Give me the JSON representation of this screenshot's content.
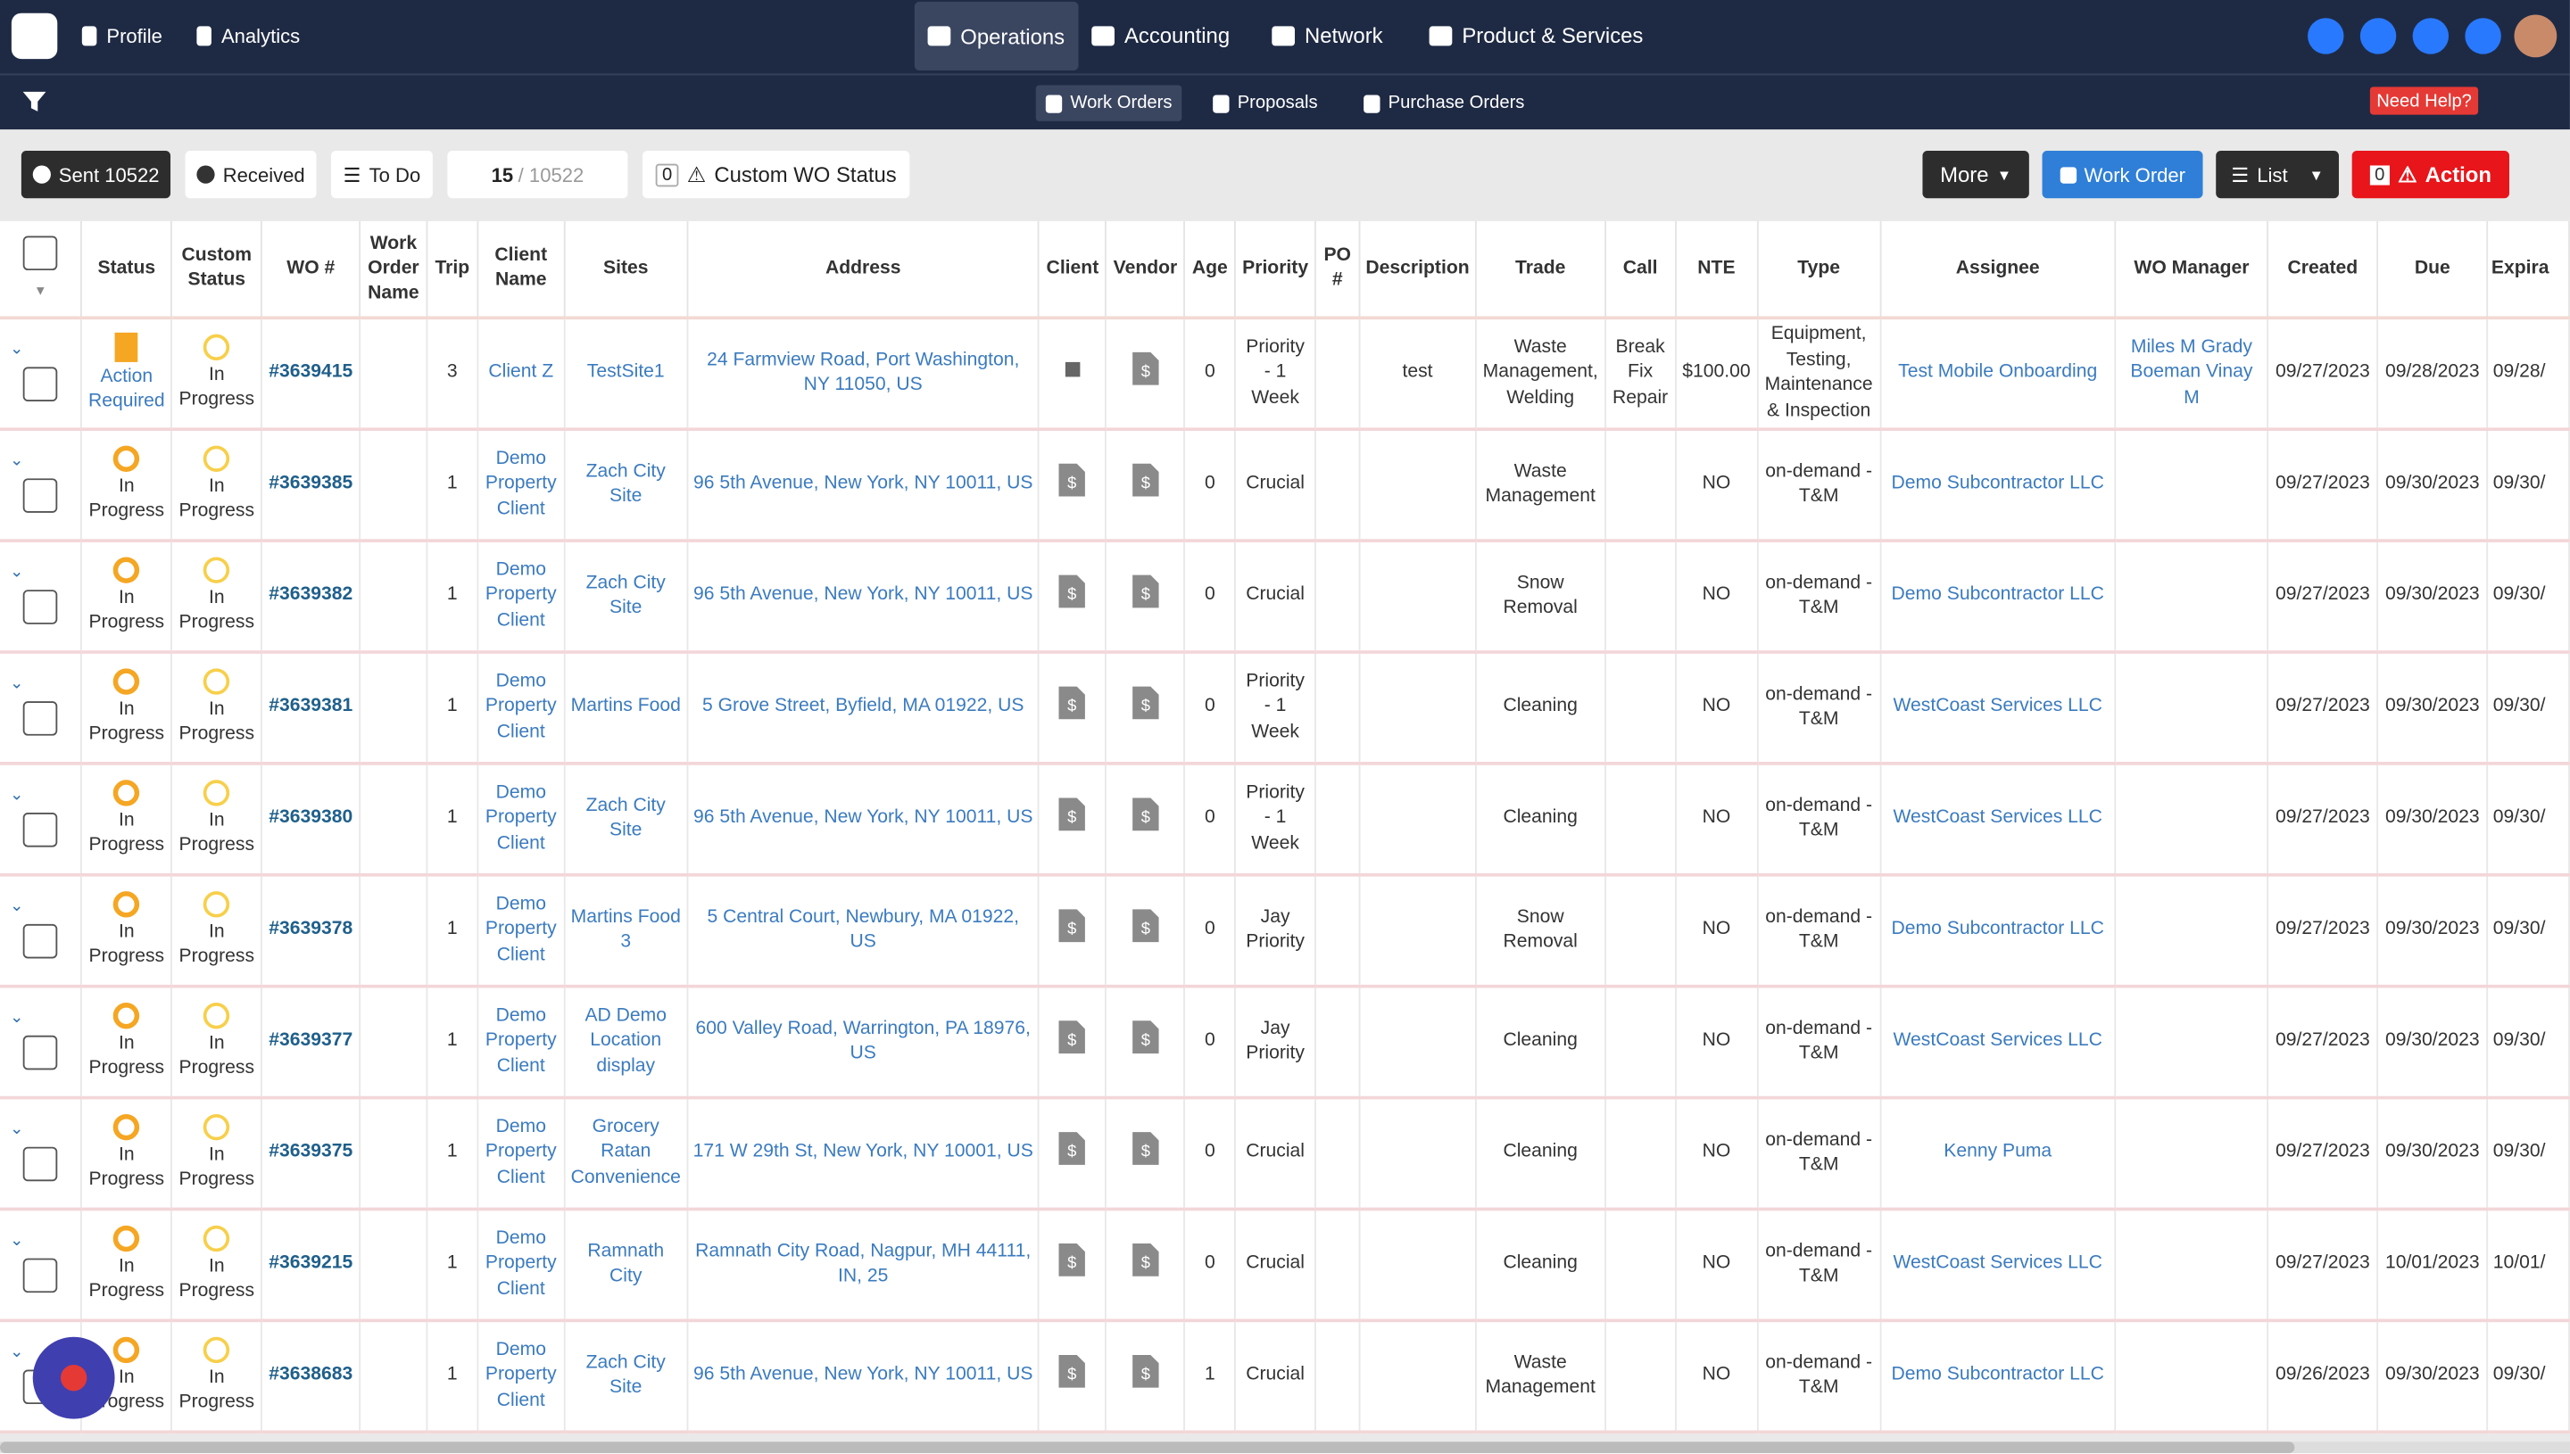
{
  "nav": {
    "items": [
      "Profile",
      "Analytics",
      "Operations",
      "Accounting",
      "Network",
      "Product & Services"
    ]
  },
  "subnav": {
    "items": [
      "Work Orders",
      "Proposals",
      "Purchase Orders"
    ],
    "help": "Need Help?"
  },
  "toolbar": {
    "sent": "Sent 10522",
    "received": "Received",
    "todo": "To Do",
    "page_current": "15",
    "page_total": "/ 10522",
    "custom_count": "0",
    "custom": "Custom WO Status",
    "more": "More",
    "work_order": "Work Order",
    "list": "List",
    "action_count": "0",
    "action": "Action"
  },
  "table": {
    "columns": [
      "Status",
      "Custom Status",
      "WO #",
      "Work Order Name",
      "Trip",
      "Client Name",
      "Sites",
      "Address",
      "Client",
      "Vendor",
      "Age",
      "Priority",
      "PO #",
      "Description",
      "Trade",
      "Call",
      "NTE",
      "Type",
      "Assignee",
      "WO Manager",
      "Created",
      "Due",
      "Expira"
    ],
    "rows": [
      [
        "Action Required",
        "In Progress",
        "#3639415",
        null,
        3,
        "Client Z",
        "TestSite1",
        "24 Farmview Road, Port Washington, NY 11050, US",
        null,
        null,
        0,
        "Priority - 1 Week",
        null,
        "test",
        "Waste Management, Welding",
        "Break Fix Repair",
        "$100.00",
        "Equipment, Testing, Maintenance & Inspection",
        "Test Mobile Onboarding",
        "Miles M Grady Boeman Vinay M",
        "09/27/2023",
        "09/28/2023",
        "09/28/"
      ],
      [
        "In Progress",
        "In Progress",
        "#3639385",
        null,
        1,
        "Demo Property Client",
        "Zach City Site",
        "96 5th Avenue, New York, NY 10011, US",
        null,
        null,
        0,
        "Crucial",
        null,
        null,
        "Waste Management",
        null,
        "NO",
        "on-demand - T&M",
        "Demo Subcontractor LLC",
        null,
        "09/27/2023",
        "09/30/2023",
        "09/30/"
      ],
      [
        "In Progress",
        "In Progress",
        "#3639382",
        null,
        1,
        "Demo Property Client",
        "Zach City Site",
        "96 5th Avenue, New York, NY 10011, US",
        null,
        null,
        0,
        "Crucial",
        null,
        null,
        "Snow Removal",
        null,
        "NO",
        "on-demand - T&M",
        "Demo Subcontractor LLC",
        null,
        "09/27/2023",
        "09/30/2023",
        "09/30/"
      ],
      [
        "In Progress",
        "In Progress",
        "#3639381",
        null,
        1,
        "Demo Property Client",
        "Martins Food",
        "5 Grove Street, Byfield, MA 01922, US",
        null,
        null,
        0,
        "Priority - 1 Week",
        null,
        null,
        "Cleaning",
        null,
        "NO",
        "on-demand - T&M",
        "WestCoast Services LLC",
        null,
        "09/27/2023",
        "09/30/2023",
        "09/30/"
      ],
      [
        "In Progress",
        "In Progress",
        "#3639380",
        null,
        1,
        "Demo Property Client",
        "Zach City Site",
        "96 5th Avenue, New York, NY 10011, US",
        null,
        null,
        0,
        "Priority - 1 Week",
        null,
        null,
        "Cleaning",
        null,
        "NO",
        "on-demand - T&M",
        "WestCoast Services LLC",
        null,
        "09/27/2023",
        "09/30/2023",
        "09/30/"
      ],
      [
        "In Progress",
        "In Progress",
        "#3639378",
        null,
        1,
        "Demo Property Client",
        "Martins Food 3",
        "5 Central Court, Newbury, MA 01922, US",
        null,
        null,
        0,
        "Jay Priority",
        null,
        null,
        "Snow Removal",
        null,
        "NO",
        "on-demand - T&M",
        "Demo Subcontractor LLC",
        null,
        "09/27/2023",
        "09/30/2023",
        "09/30/"
      ],
      [
        "In Progress",
        "In Progress",
        "#3639377",
        null,
        1,
        "Demo Property Client",
        "AD Demo Location display",
        "600 Valley Road, Warrington, PA 18976, US",
        null,
        null,
        0,
        "Jay Priority",
        null,
        null,
        "Cleaning",
        null,
        "NO",
        "on-demand - T&M",
        "WestCoast Services LLC",
        null,
        "09/27/2023",
        "09/30/2023",
        "09/30/"
      ],
      [
        "In Progress",
        "In Progress",
        "#3639375",
        null,
        1,
        "Demo Property Client",
        "Grocery Ratan Convenience",
        "171 W 29th St, New York, NY 10001, US",
        null,
        null,
        0,
        "Crucial",
        null,
        null,
        "Cleaning",
        null,
        "NO",
        "on-demand - T&M",
        "Kenny Puma",
        null,
        "09/27/2023",
        "09/30/2023",
        "09/30/"
      ],
      [
        "In Progress",
        "In Progress",
        "#3639215",
        null,
        1,
        "Demo Property Client",
        "Ramnath City",
        "Ramnath City Road, Nagpur, MH 44111, IN, 25",
        null,
        null,
        0,
        "Crucial",
        null,
        null,
        "Cleaning",
        null,
        "NO",
        "on-demand - T&M",
        "WestCoast Services LLC",
        null,
        "09/27/2023",
        "10/01/2023",
        "10/01/"
      ],
      [
        "In Progress",
        "In Progress",
        "#3638683",
        null,
        1,
        "Demo Property Client",
        "Zach City Site",
        "96 5th Avenue, New York, NY 10011, US",
        null,
        null,
        1,
        "Crucial",
        null,
        null,
        "Waste Management",
        null,
        "NO",
        "on-demand - T&M",
        "Demo Subcontractor LLC",
        null,
        "09/26/2023",
        "09/30/2023",
        "09/30/"
      ]
    ]
  }
}
